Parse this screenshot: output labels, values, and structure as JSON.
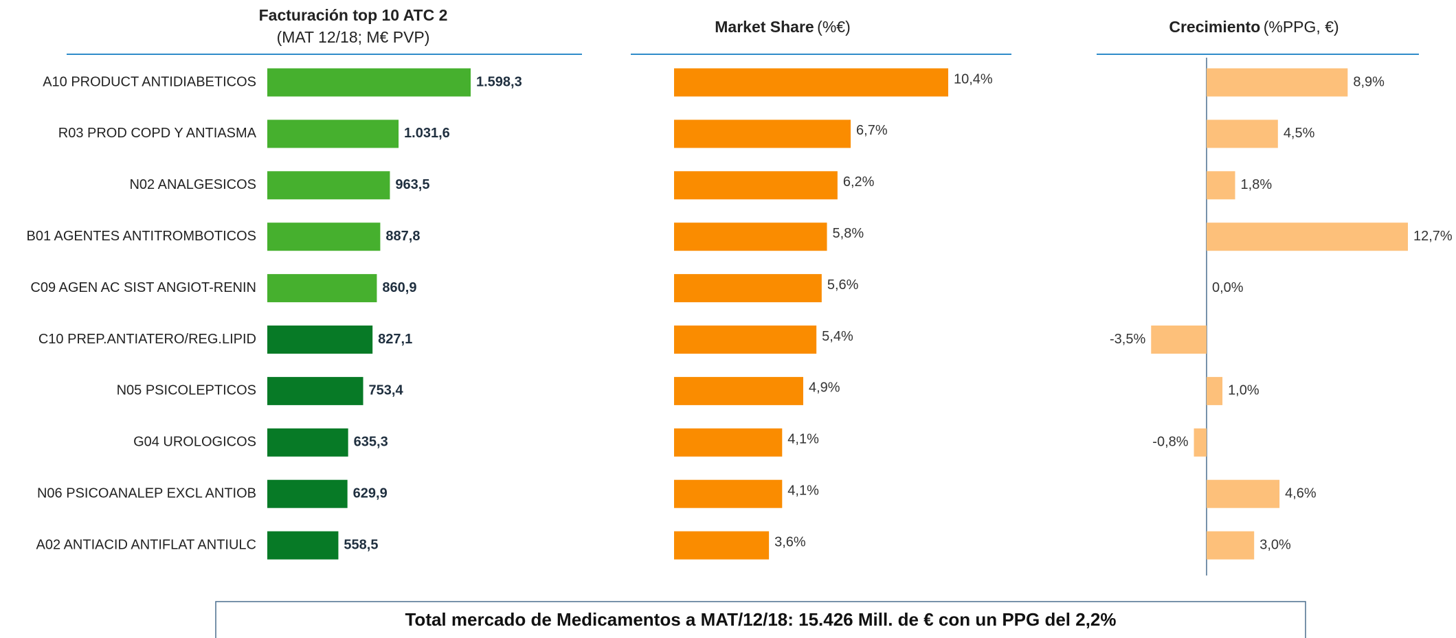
{
  "chart_data": [
    {
      "type": "bar",
      "orientation": "horizontal",
      "title": "Facturación top 10 ATC 2",
      "subtitle": "(MAT 12/18; M€ PVP)",
      "categories": [
        "A10 PRODUCT ANTIDIABETICOS",
        "R03 PROD COPD Y ANTIASMA",
        "N02 ANALGESICOS",
        "B01 AGENTES ANTITROMBOTICOS",
        "C09 AGEN AC SIST ANGIOT-RENIN",
        "C10 PREP.ANTIATERO/REG.LIPID",
        "N05 PSICOLEPTICOS",
        "G04 UROLOGICOS",
        "N06 PSICOANALEP EXCL ANTIOB",
        "A02 ANTIACID ANTIFLAT ANTIULC"
      ],
      "values": [
        1598.3,
        1031.6,
        963.5,
        887.8,
        860.9,
        827.1,
        753.4,
        635.3,
        629.9,
        558.5
      ],
      "value_labels": [
        "1.598,3",
        "1.031,6",
        "963,5",
        "887,8",
        "860,9",
        "827,1",
        "753,4",
        "635,3",
        "629,9",
        "558,5"
      ],
      "colors": [
        "#46b02e",
        "#46b02e",
        "#46b02e",
        "#46b02e",
        "#46b02e",
        "#077a26",
        "#077a26",
        "#077a26",
        "#077a26",
        "#077a26"
      ]
    },
    {
      "type": "bar",
      "orientation": "horizontal",
      "title": "Market Share",
      "subtitle": "(%€)",
      "values": [
        10.4,
        6.7,
        6.2,
        5.8,
        5.6,
        5.4,
        4.9,
        4.1,
        4.1,
        3.6
      ],
      "value_labels": [
        "10,4%",
        "6,7%",
        "6,2%",
        "5,8%",
        "5,6%",
        "5,4%",
        "4,9%",
        "4,1%",
        "4,1%",
        "3,6%"
      ],
      "color": "#fa8c00"
    },
    {
      "type": "bar",
      "orientation": "horizontal",
      "title": "Crecimiento",
      "subtitle": "(%PPG, €)",
      "values": [
        8.9,
        4.5,
        1.8,
        12.7,
        0.0,
        -3.5,
        1.0,
        -0.8,
        4.6,
        3.0
      ],
      "value_labels": [
        "8,9%",
        "4,5%",
        "1,8%",
        "12,7%",
        "0,0%",
        "-3,5%",
        "1,0%",
        "-0,8%",
        "4,6%",
        "3,0%"
      ],
      "color": "#fdc07a"
    }
  ],
  "footer": "Total mercado de Medicamentos a MAT/12/18: 15.426 Mill. de € con un PPG del 2,2%"
}
